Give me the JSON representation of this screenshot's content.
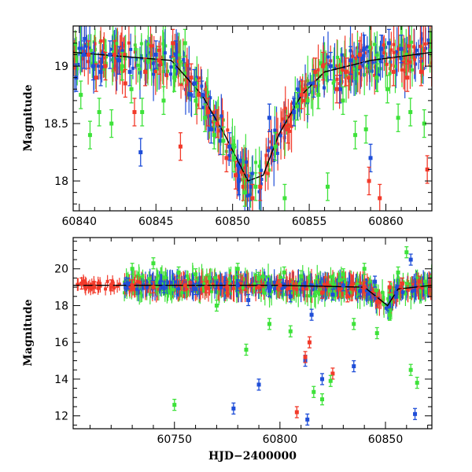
{
  "colors": {
    "blue": "#1f4ed8",
    "red": "#f23a2a",
    "green": "#3ee23a",
    "model": "#000000"
  },
  "chart_data": [
    {
      "type": "scatter",
      "panel": "top",
      "title": "",
      "xlabel": "",
      "ylabel": "Magnitude",
      "xlim": [
        60839.6,
        60863.0
      ],
      "ylim": [
        19.35,
        17.74
      ],
      "y_inverted": true,
      "xticks": [
        60840,
        60845,
        60850,
        60855,
        60860
      ],
      "yticks": [
        18,
        18.5,
        19
      ],
      "ytick_labels": [
        "18",
        "18.5",
        "19"
      ],
      "series": [
        {
          "color_key": "blue",
          "points": [
            [
              60839.8,
              18.9
            ],
            [
              60840.3,
              19.1
            ],
            [
              60840.9,
              19.0
            ],
            [
              60841.4,
              18.95
            ],
            [
              60842.0,
              19.1
            ],
            [
              60842.6,
              19.05
            ],
            [
              60843.3,
              18.95
            ],
            [
              60844.0,
              18.25
            ],
            [
              60845.0,
              19.1
            ],
            [
              60846.3,
              19.1
            ],
            [
              60847.5,
              18.85
            ],
            [
              60848.0,
              18.75
            ],
            [
              60848.6,
              18.45
            ],
            [
              60849.2,
              18.35
            ],
            [
              60849.8,
              18.3
            ],
            [
              60850.4,
              18.0
            ],
            [
              60851.2,
              17.95
            ],
            [
              60852.4,
              18.55
            ],
            [
              60854.0,
              18.6
            ],
            [
              60855.3,
              18.85
            ],
            [
              60856.4,
              19.0
            ],
            [
              60857.0,
              18.8
            ],
            [
              60857.7,
              19.05
            ],
            [
              60858.6,
              19.15
            ],
            [
              60859.0,
              18.2
            ],
            [
              60859.7,
              19.15
            ],
            [
              60860.2,
              19.2
            ],
            [
              60861.0,
              19.15
            ]
          ]
        },
        {
          "color_key": "red",
          "points": [
            [
              60840.6,
              19.1
            ],
            [
              60841.1,
              18.9
            ],
            [
              60841.7,
              19.0
            ],
            [
              60842.3,
              19.1
            ],
            [
              60843.0,
              18.85
            ],
            [
              60843.6,
              18.6
            ],
            [
              60844.3,
              18.95
            ],
            [
              60845.2,
              19.05
            ],
            [
              60846.1,
              19.2
            ],
            [
              60846.6,
              18.3
            ],
            [
              60847.3,
              18.9
            ],
            [
              60847.8,
              18.75
            ],
            [
              60848.4,
              18.6
            ],
            [
              60849.0,
              18.5
            ],
            [
              60849.6,
              18.2
            ],
            [
              60850.2,
              18.05
            ],
            [
              60850.7,
              17.95
            ],
            [
              60851.3,
              17.85
            ],
            [
              60851.8,
              17.95
            ],
            [
              60853.6,
              18.45
            ],
            [
              60854.5,
              18.75
            ],
            [
              60855.4,
              18.95
            ],
            [
              60855.9,
              19.0
            ],
            [
              60856.8,
              18.8
            ],
            [
              60857.4,
              18.95
            ],
            [
              60858.3,
              19.1
            ],
            [
              60858.9,
              18.0
            ],
            [
              60859.6,
              17.85
            ],
            [
              60860.5,
              18.95
            ],
            [
              60861.4,
              18.9
            ],
            [
              60862.3,
              18.95
            ],
            [
              60862.7,
              18.1
            ]
          ]
        },
        {
          "color_key": "green",
          "points": [
            [
              60840.1,
              18.75
            ],
            [
              60840.7,
              18.4
            ],
            [
              60841.3,
              18.6
            ],
            [
              60842.1,
              18.5
            ],
            [
              60842.8,
              19.0
            ],
            [
              60843.4,
              18.8
            ],
            [
              60844.1,
              18.6
            ],
            [
              60845.5,
              18.7
            ],
            [
              60846.2,
              18.9
            ],
            [
              60846.9,
              19.2
            ],
            [
              60847.6,
              18.7
            ],
            [
              60848.2,
              18.55
            ],
            [
              60848.8,
              18.4
            ],
            [
              60849.4,
              18.35
            ],
            [
              60850.1,
              18.2
            ],
            [
              60850.8,
              17.9
            ],
            [
              60851.5,
              17.95
            ],
            [
              60852.8,
              18.3
            ],
            [
              60853.4,
              17.85
            ],
            [
              60854.2,
              18.65
            ],
            [
              60854.9,
              18.7
            ],
            [
              60855.6,
              18.75
            ],
            [
              60856.2,
              17.95
            ],
            [
              60857.2,
              18.7
            ],
            [
              60858.0,
              18.4
            ],
            [
              60858.7,
              18.45
            ],
            [
              60859.4,
              18.9
            ],
            [
              60860.1,
              18.8
            ],
            [
              60860.8,
              18.55
            ],
            [
              60861.6,
              18.6
            ],
            [
              60862.5,
              18.5
            ]
          ]
        }
      ],
      "model_curve": [
        [
          60839.6,
          19.12
        ],
        [
          60846.0,
          19.05
        ],
        [
          60848.0,
          18.75
        ],
        [
          60849.5,
          18.4
        ],
        [
          60851.0,
          18.0
        ],
        [
          60852.0,
          18.05
        ],
        [
          60853.0,
          18.4
        ],
        [
          60854.5,
          18.75
        ],
        [
          60856.0,
          18.95
        ],
        [
          60859.0,
          19.05
        ],
        [
          60863.0,
          19.12
        ]
      ]
    },
    {
      "type": "scatter",
      "panel": "bottom",
      "title": "",
      "xlabel": "HJD−2400000",
      "ylabel": "Magnitude",
      "xlim": [
        60702,
        60872
      ],
      "ylim": [
        21.7,
        11.3
      ],
      "y_inverted": true,
      "xticks": [
        60750,
        60800,
        60850
      ],
      "yticks": [
        12,
        14,
        16,
        18,
        20
      ],
      "series": [
        {
          "color_key": "blue",
          "points": [
            [
              60728,
              19.2
            ],
            [
              60745,
              19.0
            ],
            [
              60760,
              18.9
            ],
            [
              60778,
              12.4
            ],
            [
              60780,
              19.1
            ],
            [
              60785,
              18.3
            ],
            [
              60790,
              13.7
            ],
            [
              60795,
              18.8
            ],
            [
              60805,
              18.5
            ],
            [
              60812,
              15.0
            ],
            [
              60813,
              11.8
            ],
            [
              60815,
              17.5
            ],
            [
              60820,
              14.0
            ],
            [
              60825,
              18.6
            ],
            [
              60830,
              19.1
            ],
            [
              60835,
              14.7
            ],
            [
              60838,
              18.8
            ],
            [
              60845,
              19.3
            ],
            [
              60855,
              18.7
            ],
            [
              60862,
              20.5
            ],
            [
              60864,
              12.1
            ]
          ]
        },
        {
          "color_key": "red",
          "points": [
            [
              60706,
              19.2
            ],
            [
              60712,
              19.0
            ],
            [
              60720,
              19.1
            ],
            [
              60730,
              19.1
            ],
            [
              60740,
              19.0
            ],
            [
              60755,
              19.1
            ],
            [
              60765,
              19.0
            ],
            [
              60775,
              19.0
            ],
            [
              60790,
              19.0
            ],
            [
              60800,
              19.1
            ],
            [
              60808,
              12.2
            ],
            [
              60812,
              15.2
            ],
            [
              60814,
              16.0
            ],
            [
              60820,
              18.7
            ],
            [
              60825,
              14.3
            ],
            [
              60832,
              18.5
            ],
            [
              60840,
              19.0
            ],
            [
              60846,
              18.2
            ],
            [
              60852,
              19.0
            ],
            [
              60858,
              19.2
            ],
            [
              60866,
              19.3
            ]
          ]
        },
        {
          "color_key": "green",
          "points": [
            [
              60730,
              20.0
            ],
            [
              60740,
              20.3
            ],
            [
              60750,
              12.6
            ],
            [
              60752,
              19.8
            ],
            [
              60760,
              19.7
            ],
            [
              60770,
              18.0
            ],
            [
              60780,
              20.0
            ],
            [
              60784,
              15.6
            ],
            [
              60790,
              19.5
            ],
            [
              60795,
              17.0
            ],
            [
              60802,
              19.8
            ],
            [
              60805,
              16.6
            ],
            [
              60810,
              19.6
            ],
            [
              60816,
              13.3
            ],
            [
              60820,
              12.9
            ],
            [
              60824,
              13.9
            ],
            [
              60830,
              19.7
            ],
            [
              60835,
              17.0
            ],
            [
              60840,
              20.0
            ],
            [
              60846,
              16.5
            ],
            [
              60852,
              17.5
            ],
            [
              60856,
              19.8
            ],
            [
              60860,
              20.9
            ],
            [
              60862,
              14.5
            ],
            [
              60865,
              13.8
            ]
          ]
        }
      ],
      "model_curve": [
        [
          60702,
          19.1
        ],
        [
          60740,
          19.1
        ],
        [
          60800,
          19.1
        ],
        [
          60840,
          19.0
        ],
        [
          60851,
          18.0
        ],
        [
          60856,
          18.9
        ],
        [
          60872,
          19.1
        ]
      ]
    }
  ]
}
